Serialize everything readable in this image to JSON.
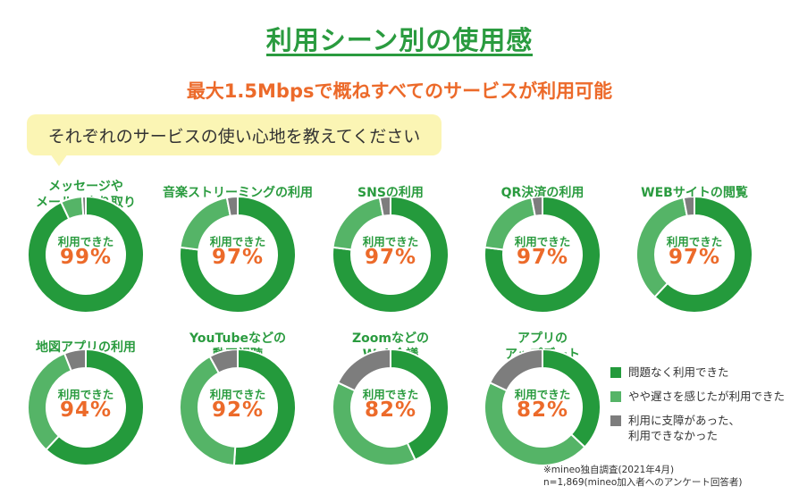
{
  "title": "利用シーン別の使用感",
  "subtitle": "最大1.5Mbpsで概ねすべてのサービスが利用可能",
  "question": "それぞれのサービスの使い心地を教えてください",
  "colors": {
    "no_problem": "#249a3c",
    "slightly_slow": "#55b467",
    "problem": "#7d7d7d",
    "title_green": "#2a9b3f",
    "accent_orange": "#ec6a2a",
    "bubble": "#fbf5b4"
  },
  "center_label": "利用できた",
  "legend": [
    {
      "key": "no_problem",
      "label": "問題なく利用できた"
    },
    {
      "key": "slightly_slow",
      "label": "やや遅さを感じたが利用できた"
    },
    {
      "key": "problem",
      "label": "利用に支障があった、\n利用できなかった"
    }
  ],
  "notes": {
    "line1": "※mineo独自調査(2021年4月)",
    "line2": "n=1,869(mineo加入者へのアンケート回答者)"
  },
  "chart_data": {
    "type": "pie",
    "style": "donut",
    "series_keys": [
      "no_problem",
      "slightly_slow",
      "problem"
    ],
    "charts": [
      {
        "title": "メッセージや\nメールのやり取り",
        "usable_label": "99%",
        "values": [
          93,
          6,
          1
        ]
      },
      {
        "title": "音楽ストリーミングの利用",
        "usable_label": "97%",
        "values": [
          77,
          20,
          3
        ]
      },
      {
        "title": "SNSの利用",
        "usable_label": "97%",
        "values": [
          77,
          20,
          3
        ]
      },
      {
        "title": "QR決済の利用",
        "usable_label": "97%",
        "values": [
          77,
          20,
          3
        ]
      },
      {
        "title": "WEBサイトの閲覧",
        "usable_label": "97%",
        "values": [
          62,
          35,
          3
        ]
      },
      {
        "title": "地図アプリの利用",
        "usable_label": "94%",
        "values": [
          62,
          32,
          6
        ]
      },
      {
        "title": "YouTubeなどの\n動画視聴",
        "usable_label": "92%",
        "values": [
          51,
          41,
          8
        ]
      },
      {
        "title": "Zoomなどの\nWeb会議",
        "usable_label": "82%",
        "values": [
          43,
          39,
          18
        ]
      },
      {
        "title": "アプリの\nアップデート",
        "usable_label": "82%",
        "values": [
          37,
          45,
          18
        ]
      }
    ]
  }
}
